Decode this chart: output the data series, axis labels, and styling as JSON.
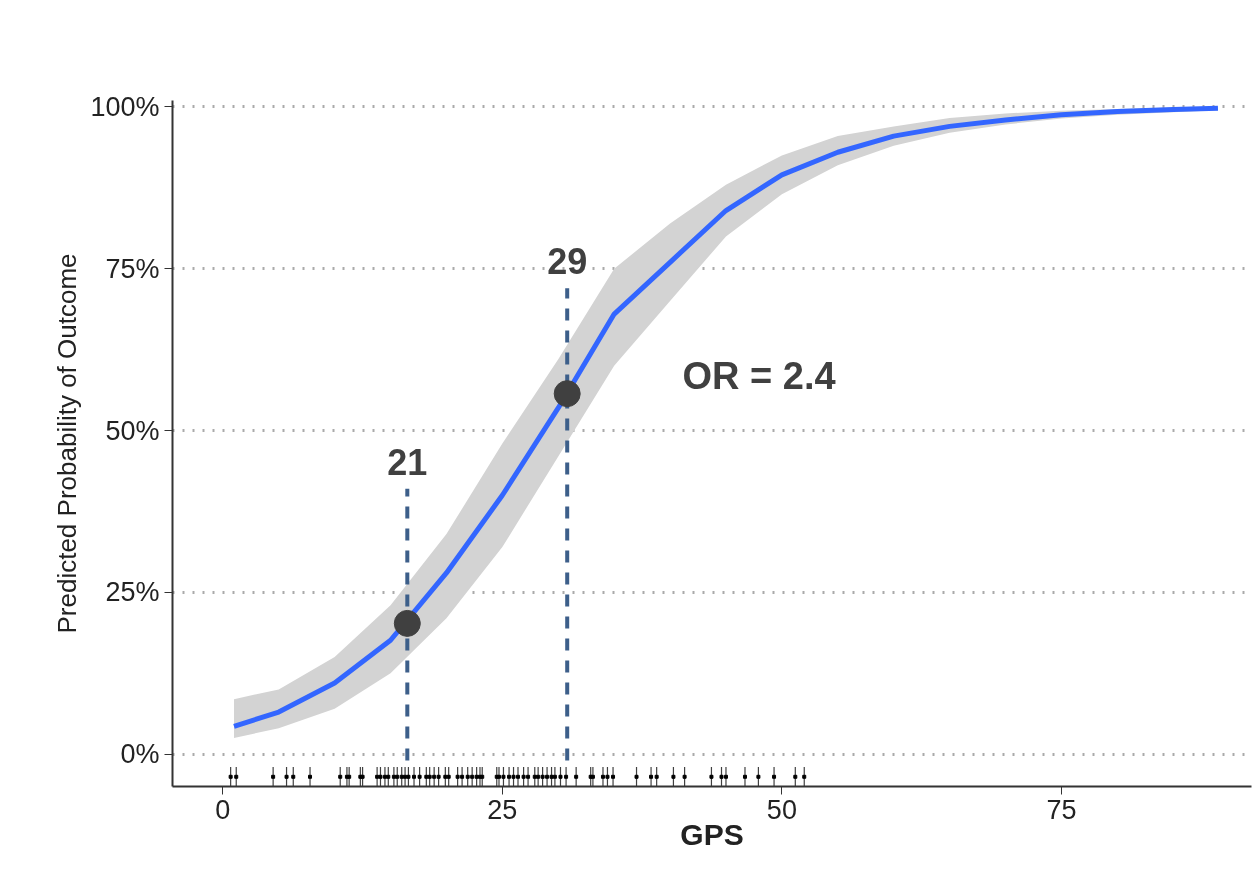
{
  "chart_data": {
    "type": "line",
    "xlabel": "GPS",
    "ylabel": "Predicted Probability of Outcome",
    "xlim": [
      -4.5,
      92
    ],
    "ylim": [
      -5,
      101
    ],
    "xticks": [
      0,
      25,
      50,
      75
    ],
    "yticks": [
      {
        "value": 0,
        "label": "0%"
      },
      {
        "value": 25,
        "label": "25%"
      },
      {
        "value": 50,
        "label": "50%"
      },
      {
        "value": 75,
        "label": "75%"
      },
      {
        "value": 100,
        "label": "100%"
      }
    ],
    "grid": "y",
    "series": [
      {
        "color": "#3366ff",
        "x": [
          1,
          5,
          10,
          15,
          20,
          25,
          30,
          35,
          40,
          45,
          50,
          55,
          60,
          65,
          70,
          75,
          80,
          85,
          89
        ],
        "values": [
          4.3,
          6.5,
          11,
          17.6,
          28,
          40,
          53.5,
          68,
          76,
          84,
          89.5,
          93,
          95.5,
          97,
          98,
          98.8,
          99.3,
          99.6,
          99.8
        ],
        "lower": [
          2.5,
          4,
          7,
          12.5,
          21,
          32,
          46,
          60,
          70,
          80,
          86.5,
          91,
          94,
          96,
          97.3,
          98.2,
          98.8,
          99.2,
          99.5
        ],
        "upper": [
          8.5,
          10,
          15,
          23,
          34,
          48,
          61,
          75,
          82,
          88,
          92.5,
          95.5,
          97,
          98.3,
          99,
          99.4,
          99.7,
          99.9,
          100
        ]
      },
      {
        "type": "line",
        "color": "#3d5f8a",
        "line_style": "dashed",
        "x": [
          16.5,
          16.5
        ],
        "values": [
          -1,
          41
        ]
      },
      {
        "type": "line",
        "color": "#3d5f8a",
        "line_style": "dashed",
        "x": [
          30.8,
          30.8
        ],
        "values": [
          -1,
          72
        ]
      },
      {
        "type": "scatter",
        "color": "#404040",
        "marker": "circle",
        "x": [
          16.5,
          30.8
        ],
        "values": [
          20.2,
          55.7
        ]
      },
      {
        "type": "scatter",
        "color": "#000000",
        "marker": "square",
        "errors": [
          1.5,
          1.5,
          1.5,
          1.5,
          1.5,
          1.5,
          1.5,
          1.5,
          1.5,
          1.5,
          1.5,
          1.5,
          1.5,
          1.5,
          1.5,
          1.5,
          1.5,
          1.5,
          1.5,
          1.5,
          1.5,
          1.5,
          1.5,
          1.5,
          1.5,
          1.5,
          1.5,
          1.5,
          1.5,
          1.5,
          1.5,
          1.5,
          1.5,
          1.5,
          1.5,
          1.5,
          1.5,
          1.5,
          1.5,
          1.5,
          1.5,
          1.5,
          1.5,
          1.5,
          1.5,
          1.5,
          1.5,
          1.5,
          1.5,
          1.5,
          1.5,
          1.5,
          1.5,
          1.5,
          1.5,
          1.5,
          1.5,
          1.5,
          1.5,
          1.5,
          1.5,
          1.5,
          1.5,
          1.5,
          1.5,
          1.5,
          1.5,
          1.5,
          1.5,
          1.5
        ],
        "x": [
          0.7,
          1.2,
          4.5,
          5.7,
          6.3,
          7.8,
          10.5,
          11.1,
          11.3,
          12.3,
          12.5,
          13.8,
          14.1,
          14.5,
          14.8,
          15.3,
          15.6,
          16.0,
          16.3,
          16.6,
          17.1,
          17.6,
          18.2,
          18.5,
          18.9,
          19.3,
          19.9,
          20.2,
          21.0,
          21.4,
          21.9,
          22.3,
          22.7,
          23.0,
          23.2,
          24.5,
          24.7,
          25.1,
          25.6,
          26.0,
          26.4,
          26.9,
          27.3,
          27.9,
          28.2,
          28.6,
          29.0,
          29.4,
          29.7,
          30.2,
          30.7,
          31.6,
          32.9,
          33.1,
          34.0,
          34.4,
          34.9,
          37.0,
          38.3,
          38.8,
          40.3,
          41.3,
          43.7,
          44.6,
          45.0,
          46.7,
          47.9,
          49.3,
          51.2,
          52.0
        ],
        "values": [
          -3.5,
          -3.5,
          -3.5,
          -3.5,
          -3.5,
          -3.5,
          -3.5,
          -3.5,
          -3.5,
          -3.5,
          -3.5,
          -3.5,
          -3.5,
          -3.5,
          -3.5,
          -3.5,
          -3.5,
          -3.5,
          -3.5,
          -3.5,
          -3.5,
          -3.5,
          -3.5,
          -3.5,
          -3.5,
          -3.5,
          -3.5,
          -3.5,
          -3.5,
          -3.5,
          -3.5,
          -3.5,
          -3.5,
          -3.5,
          -3.5,
          -3.5,
          -3.5,
          -3.5,
          -3.5,
          -3.5,
          -3.5,
          -3.5,
          -3.5,
          -3.5,
          -3.5,
          -3.5,
          -3.5,
          -3.5,
          -3.5,
          -3.5,
          -3.5,
          -3.5,
          -3.5,
          -3.5,
          -3.5,
          -3.5,
          -3.5,
          -3.5,
          -3.5,
          -3.5,
          -3.5,
          -3.5,
          -3.5,
          -3.5,
          -3.5,
          -3.5,
          -3.5,
          -3.5,
          -3.5,
          -3.5
        ]
      }
    ],
    "annotations": [
      {
        "text": "21",
        "x": 16.5,
        "y": 41
      },
      {
        "text": "29",
        "x": 30.8,
        "y": 72
      },
      "OR = 2.4"
    ]
  }
}
